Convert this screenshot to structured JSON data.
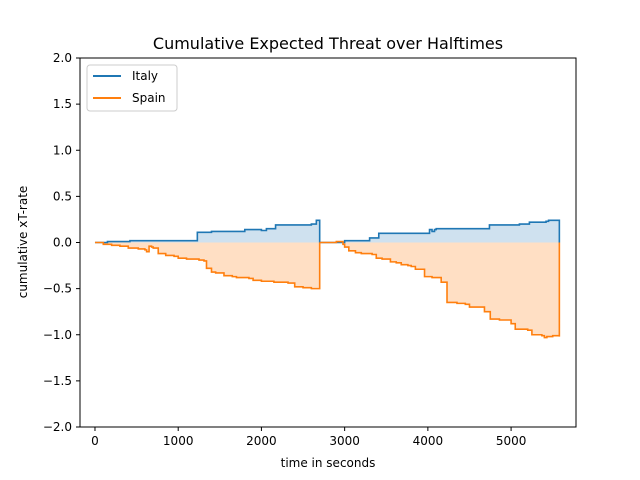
{
  "chart_data": {
    "type": "line",
    "title": "Cumulative Expected Threat over Halftimes",
    "xlabel": "time in seconds",
    "ylabel": "cumulative xT-rate",
    "xlim": [
      -180,
      5780
    ],
    "ylim": [
      -2.0,
      2.0
    ],
    "xticks": [
      0,
      1000,
      2000,
      3000,
      4000,
      5000
    ],
    "yticks": [
      -2.0,
      -1.5,
      -1.0,
      -0.5,
      0.0,
      0.5,
      1.0,
      1.5,
      2.0
    ],
    "xtick_labels": [
      "0",
      "1000",
      "2000",
      "3000",
      "4000",
      "5000"
    ],
    "ytick_labels": [
      "−2.0",
      "−1.5",
      "−1.0",
      "−0.5",
      "0.0",
      "0.5",
      "1.0",
      "1.5",
      "2.0"
    ],
    "grid": false,
    "legend_position": "upper-left",
    "fill_to_zero": true,
    "series": [
      {
        "name": "Italy",
        "color": "#1f77b4",
        "fill_color": "#cfe1ef",
        "halves": [
          {
            "x": [
              0,
              150,
              330,
              420,
              600,
              900,
              1200,
              1230,
              1400,
              1580,
              1760,
              1800,
              1950,
              2000,
              2060,
              2100,
              2170,
              2320,
              2600,
              2660,
              2700,
              2700
            ],
            "y": [
              0.0,
              0.01,
              0.01,
              0.02,
              0.02,
              0.02,
              0.02,
              0.11,
              0.12,
              0.12,
              0.12,
              0.14,
              0.14,
              0.13,
              0.15,
              0.15,
              0.19,
              0.19,
              0.2,
              0.24,
              0.24,
              0.0
            ]
          },
          {
            "x": [
              2700,
              2760,
              2940,
              3000,
              3130,
              3300,
              3410,
              3600,
              3800,
              4000,
              4020,
              4050,
              4080,
              4100,
              4320,
              4400,
              4700,
              4740,
              5050,
              5100,
              5150,
              5220,
              5360,
              5420,
              5450,
              5580,
              5580
            ],
            "y": [
              0.0,
              0.0,
              0.0,
              0.02,
              0.02,
              0.05,
              0.1,
              0.1,
              0.1,
              0.1,
              0.14,
              0.12,
              0.14,
              0.15,
              0.15,
              0.15,
              0.15,
              0.19,
              0.19,
              0.2,
              0.2,
              0.22,
              0.22,
              0.23,
              0.24,
              0.24,
              0.0
            ]
          }
        ]
      },
      {
        "name": "Spain",
        "color": "#ff7f0e",
        "fill_color": "#ffdfc4",
        "halves": [
          {
            "x": [
              0,
              100,
              200,
              300,
              400,
              450,
              520,
              600,
              620,
              650,
              680,
              700,
              760,
              850,
              950,
              1000,
              1050,
              1100,
              1150,
              1250,
              1310,
              1340,
              1400,
              1450,
              1550,
              1650,
              1700,
              1850,
              1900,
              1950,
              2000,
              2050,
              2150,
              2320,
              2400,
              2500,
              2600,
              2700,
              2700
            ],
            "y": [
              0.0,
              -0.02,
              -0.03,
              -0.04,
              -0.06,
              -0.06,
              -0.07,
              -0.08,
              -0.1,
              -0.04,
              -0.05,
              -0.06,
              -0.12,
              -0.14,
              -0.15,
              -0.17,
              -0.17,
              -0.18,
              -0.18,
              -0.19,
              -0.2,
              -0.28,
              -0.32,
              -0.33,
              -0.36,
              -0.37,
              -0.38,
              -0.39,
              -0.41,
              -0.41,
              -0.42,
              -0.42,
              -0.43,
              -0.44,
              -0.48,
              -0.49,
              -0.5,
              -0.5,
              0.0
            ]
          },
          {
            "x": [
              2700,
              2760,
              2900,
              2980,
              3000,
              3050,
              3130,
              3200,
              3330,
              3380,
              3450,
              3550,
              3620,
              3680,
              3760,
              3800,
              3850,
              3960,
              4050,
              4160,
              4230,
              4350,
              4450,
              4500,
              4680,
              4750,
              4860,
              5000,
              5050,
              5200,
              5250,
              5370,
              5400,
              5430,
              5500,
              5580,
              5580
            ],
            "y": [
              0.0,
              0.0,
              0.01,
              -0.02,
              -0.05,
              -0.09,
              -0.11,
              -0.12,
              -0.13,
              -0.17,
              -0.18,
              -0.21,
              -0.22,
              -0.24,
              -0.25,
              -0.26,
              -0.29,
              -0.37,
              -0.38,
              -0.43,
              -0.65,
              -0.66,
              -0.67,
              -0.7,
              -0.75,
              -0.83,
              -0.84,
              -0.88,
              -0.94,
              -0.95,
              -1.0,
              -1.01,
              -1.03,
              -1.02,
              -1.01,
              -1.02,
              0.0
            ]
          }
        ]
      }
    ]
  }
}
